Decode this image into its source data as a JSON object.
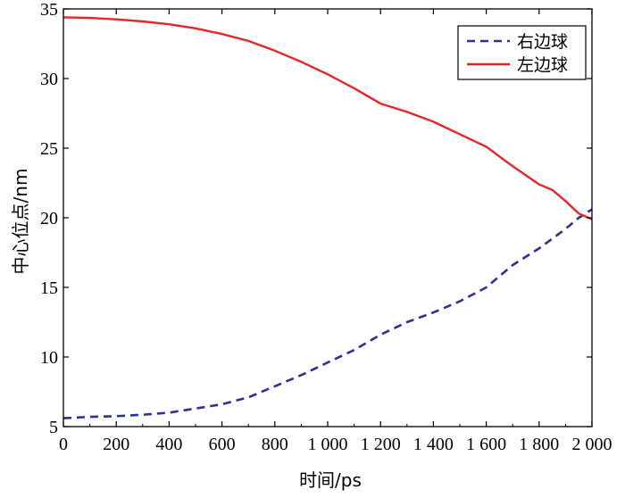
{
  "chart_data": {
    "type": "line",
    "xlabel": "时间/ps",
    "ylabel": "中心位点/nm",
    "xlim": [
      0,
      2000
    ],
    "ylim": [
      5,
      35
    ],
    "x_ticks": [
      0,
      200,
      400,
      600,
      800,
      1000,
      1200,
      1400,
      1600,
      1800,
      2000
    ],
    "x_tick_labels": [
      "0",
      "200",
      "400",
      "600",
      "800",
      "1 000",
      "1 200",
      "1 400",
      "1 600",
      "1 800",
      "2 000"
    ],
    "y_ticks": [
      5,
      10,
      15,
      20,
      25,
      30,
      35
    ],
    "y_tick_labels": [
      "5",
      "10",
      "15",
      "20",
      "25",
      "30",
      "35"
    ],
    "grid": false,
    "legend_position": "top-right",
    "x": [
      0,
      100,
      200,
      300,
      400,
      500,
      600,
      700,
      800,
      900,
      1000,
      1100,
      1200,
      1300,
      1400,
      1500,
      1600,
      1700,
      1800,
      1850,
      1900,
      1950,
      2000
    ],
    "series": [
      {
        "name": "右边球",
        "color": "#2e3192",
        "style": "dashed",
        "values": [
          5.6,
          5.7,
          5.75,
          5.85,
          6.0,
          6.3,
          6.6,
          7.1,
          7.9,
          8.7,
          9.6,
          10.5,
          11.6,
          12.5,
          13.2,
          14.0,
          15.0,
          16.6,
          17.8,
          18.5,
          19.2,
          20.0,
          20.6
        ]
      },
      {
        "name": "左边球",
        "color": "#e8262a",
        "style": "solid",
        "values": [
          34.4,
          34.35,
          34.25,
          34.1,
          33.9,
          33.6,
          33.2,
          32.7,
          32.0,
          31.2,
          30.3,
          29.3,
          28.2,
          27.6,
          26.9,
          26.0,
          25.1,
          23.7,
          22.4,
          22.0,
          21.2,
          20.3,
          19.9
        ]
      }
    ]
  }
}
